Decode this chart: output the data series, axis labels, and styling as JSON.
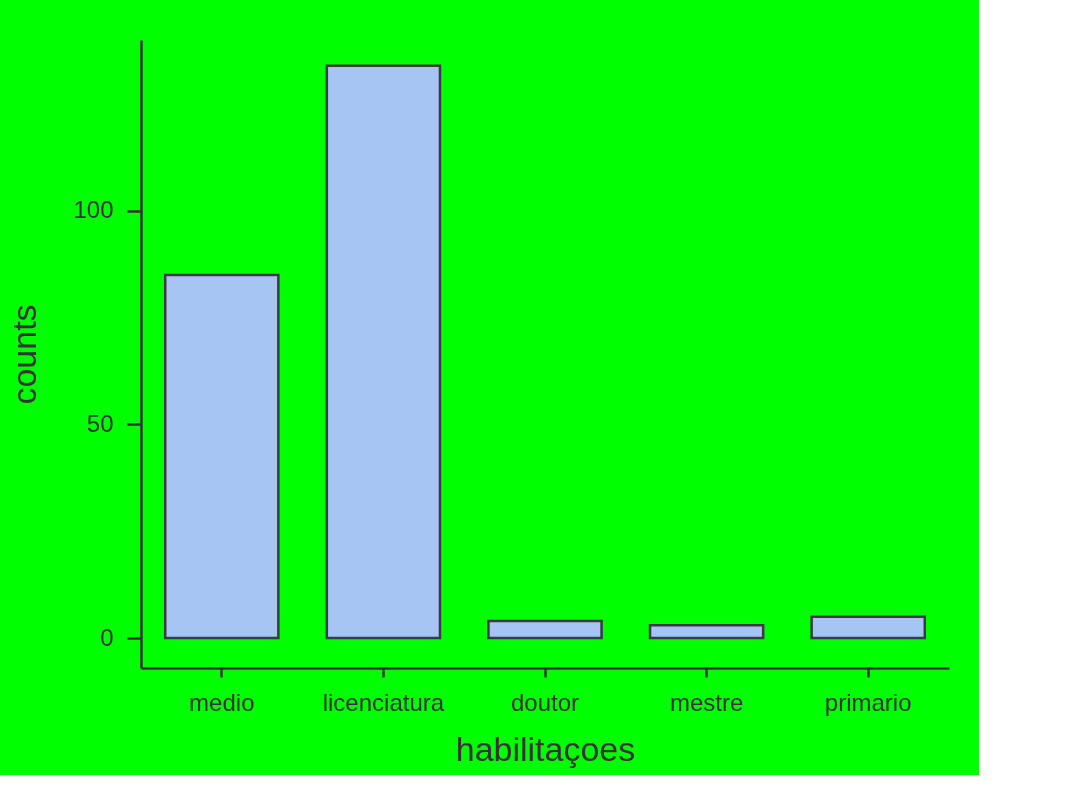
{
  "chart_data": {
    "type": "bar",
    "xlabel": "habilitaçoes",
    "ylabel": "counts",
    "categories": [
      "medio",
      "licenciatura",
      "doutor",
      "mestre",
      "primario"
    ],
    "values": [
      85,
      134,
      4,
      3,
      5
    ],
    "color": "#a6c5f2",
    "ylim": [
      -7,
      140
    ],
    "yticks": [
      0,
      50,
      100
    ],
    "grid": false
  }
}
